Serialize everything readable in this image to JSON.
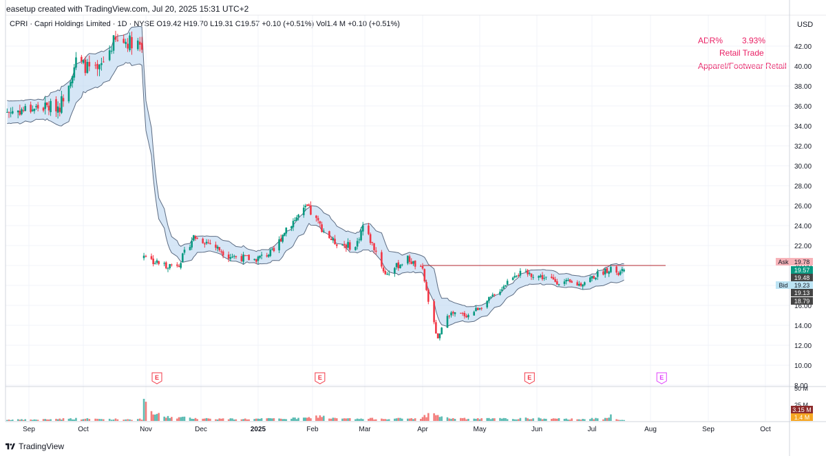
{
  "header": {
    "caption": "easetup created with TradingView.com, Jul 20, 2025 15:31 UTC+2"
  },
  "legend": {
    "symbol": "CPRI · Capri Holdings Limited · 1D · NYSE",
    "open_label": "O",
    "open": "19.42",
    "high_label": "H",
    "high": "19.70",
    "low_label": "L",
    "low": "19.31",
    "close_label": "C",
    "close": "19.57",
    "change": "+0.10 (+0.51%)",
    "volume_label": "Vol",
    "volume": "1.4 M",
    "volume_change": "+0.10 (+0.51%)"
  },
  "notes": {
    "adr_label": "ADR%",
    "adr_value": "3.93%",
    "sector": "Retail Trade",
    "industry": "Apparel/Footwear Retail"
  },
  "currency": "USD",
  "footer": {
    "brand": "TradingView"
  },
  "colors": {
    "up": "#089981",
    "down": "#f23645",
    "band_fill": "#bbd6f0",
    "band_line": "#5b6b82",
    "ask": "#f7b3b9",
    "bid": "#bde4f4",
    "level_line": "#b2242f",
    "volume_up": "#26a69a",
    "volume_down": "#ef5350",
    "earnings": "#f23645",
    "earnings_future": "#e040fb"
  },
  "chart_data": {
    "type": "candlestick",
    "x_ticks": [
      "Sep",
      "Oct",
      "Nov",
      "Dec",
      "2025",
      "Feb",
      "Mar",
      "Apr",
      "May",
      "Jun",
      "Jul",
      "Aug",
      "Sep",
      "Oct"
    ],
    "y_ticks": [
      "42.00",
      "40.00",
      "38.00",
      "36.00",
      "34.00",
      "32.00",
      "30.00",
      "28.00",
      "26.00",
      "24.00",
      "22.00",
      "20.00",
      "18.00",
      "16.00",
      "14.00",
      "12.00",
      "10.00",
      "8.00"
    ],
    "ylim": [
      8,
      44.5
    ],
    "volume_ticks": [
      "50 M",
      "25 M"
    ],
    "price_labels": [
      {
        "prefix": "Ask",
        "value": 19.78,
        "text": "19.78",
        "kind": "ask"
      },
      {
        "prefix": "",
        "value": 19.57,
        "text": "19.57",
        "kind": "last"
      },
      {
        "prefix": "",
        "value": 19.48,
        "text": "19.48",
        "kind": "dark"
      },
      {
        "prefix": "Bid",
        "value": 19.23,
        "text": "19.23",
        "kind": "bid"
      },
      {
        "prefix": "",
        "value": 19.13,
        "text": "19.13",
        "kind": "dark"
      },
      {
        "prefix": "",
        "value": 18.79,
        "text": "18.79",
        "kind": "dark"
      }
    ],
    "volume_labels": [
      {
        "text": "3.15 M",
        "kind": "vol-red"
      },
      {
        "text": "1.4 M",
        "kind": "vol-orange"
      }
    ],
    "level_line": {
      "value": 20.0,
      "from": "2025-04-01",
      "to": "2025-08-01"
    },
    "earnings_marker": "E",
    "earnings_dates": [
      "2024-11-07",
      "2025-02-05",
      "2025-05-28",
      "2025-08-07"
    ],
    "anchor_path": [
      [
        "2024-08-20",
        35.4,
        2.0
      ],
      [
        "2024-09-05",
        35.8,
        2.1
      ],
      [
        "2024-09-18",
        36.0,
        3.4
      ],
      [
        "2024-09-27",
        40.5,
        3.6
      ],
      [
        "2024-10-08",
        39.3,
        3.1
      ],
      [
        "2024-10-16",
        42.4,
        3.0
      ],
      [
        "2024-10-28",
        42.5,
        2.6
      ],
      [
        "2024-10-30",
        41.8,
        3.0
      ],
      [
        "2024-10-31",
        21.2,
        26.0
      ],
      [
        "2024-11-05",
        20.4,
        12.0
      ],
      [
        "2024-11-12",
        20.0,
        6.5
      ],
      [
        "2024-11-19",
        20.2,
        5.5
      ],
      [
        "2024-11-27",
        22.9,
        4.7
      ],
      [
        "2024-12-06",
        22.2,
        3.6
      ],
      [
        "2024-12-16",
        21.0,
        3.3
      ],
      [
        "2024-12-30",
        20.6,
        3.2
      ],
      [
        "2025-01-10",
        21.4,
        3.5
      ],
      [
        "2025-01-17",
        23.8,
        3.8
      ],
      [
        "2025-01-29",
        25.8,
        4.6
      ],
      [
        "2025-02-05",
        24.0,
        8.0
      ],
      [
        "2025-02-12",
        22.4,
        4.0
      ],
      [
        "2025-02-24",
        21.8,
        3.3
      ],
      [
        "2025-02-28",
        24.0,
        3.3
      ],
      [
        "2025-03-07",
        21.4,
        3.8
      ],
      [
        "2025-03-12",
        19.1,
        3.8
      ],
      [
        "2025-03-24",
        20.7,
        3.6
      ],
      [
        "2025-04-01",
        19.4,
        5.0
      ],
      [
        "2025-04-04",
        16.5,
        12.0
      ],
      [
        "2025-04-09",
        12.5,
        9.0
      ],
      [
        "2025-04-14",
        15.2,
        4.5
      ],
      [
        "2025-04-25",
        15.0,
        3.5
      ],
      [
        "2025-05-09",
        17.0,
        3.5
      ],
      [
        "2025-05-20",
        19.2,
        3.6
      ],
      [
        "2025-05-30",
        19.1,
        4.2
      ],
      [
        "2025-06-12",
        18.4,
        3.2
      ],
      [
        "2025-06-24",
        18.1,
        3.2
      ],
      [
        "2025-07-09",
        19.6,
        3.8
      ],
      [
        "2025-07-11",
        19.8,
        14.0
      ],
      [
        "2025-07-14",
        19.0,
        3.3
      ],
      [
        "2025-07-18",
        19.57,
        1.4
      ]
    ]
  }
}
